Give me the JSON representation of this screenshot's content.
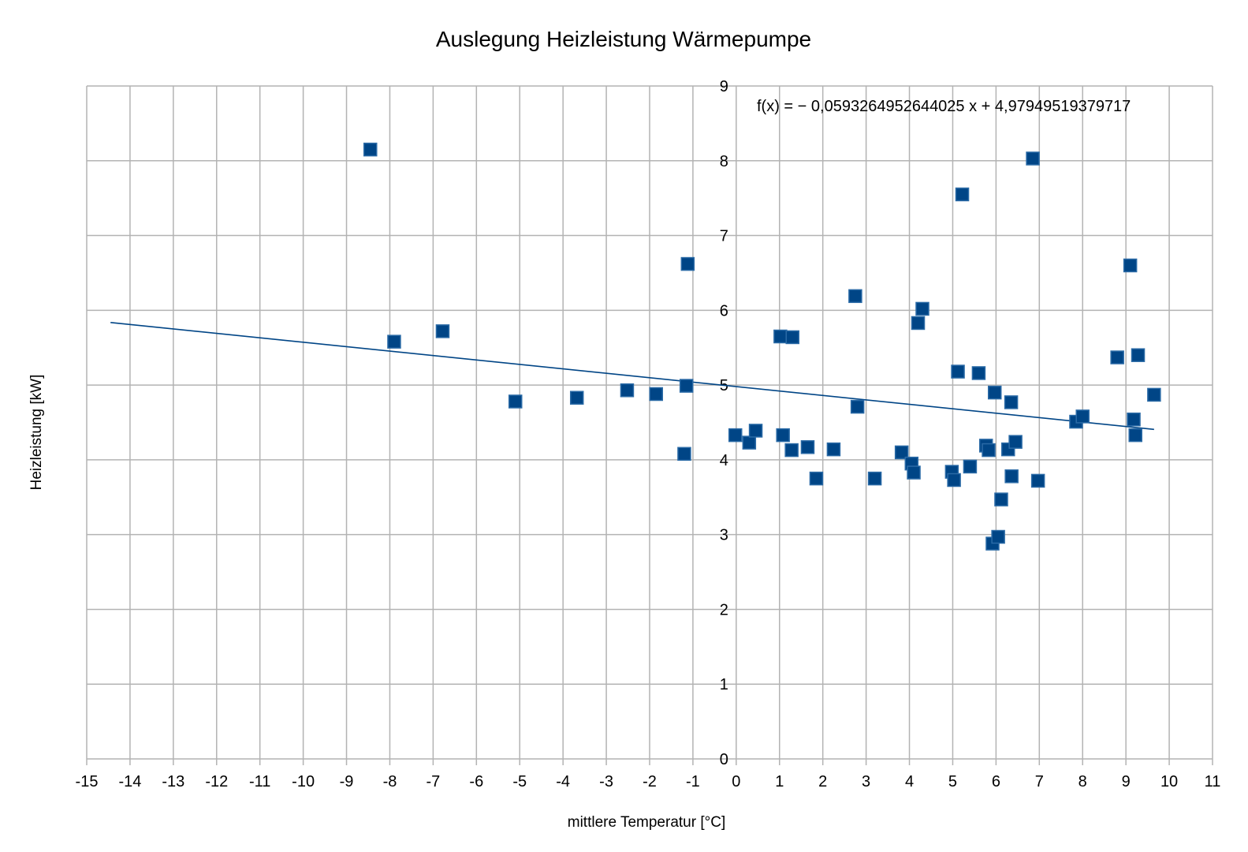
{
  "chart_data": {
    "type": "scatter",
    "title": "Auslegung Heizleistung Wärmepumpe",
    "xlabel": "mittlere Temperatur [°C]",
    "ylabel": "Heizleistung [kW]",
    "xlim": [
      -15,
      11
    ],
    "ylim": [
      0,
      9
    ],
    "x_ticks": [
      -15,
      -14,
      -13,
      -12,
      -11,
      -10,
      -9,
      -8,
      -7,
      -6,
      -5,
      -4,
      -3,
      -2,
      -1,
      0,
      1,
      2,
      3,
      4,
      5,
      6,
      7,
      8,
      9,
      10,
      11
    ],
    "y_ticks": [
      0,
      1,
      2,
      3,
      4,
      5,
      6,
      7,
      8,
      9
    ],
    "grid": true,
    "legend": "none",
    "marker_color": "#004586",
    "trendline": {
      "type": "linear",
      "slope": -0.0593264952644025,
      "intercept": 4.97949519379717,
      "x_range": [
        -14.45,
        9.65
      ],
      "equation": "f(x) = − 0,0593264952644025 x + 4,97949519379717"
    },
    "series": [
      {
        "points": [
          [
            -8.45,
            8.15
          ],
          [
            -7.9,
            5.58
          ],
          [
            -6.78,
            5.72
          ],
          [
            -5.1,
            4.78
          ],
          [
            -3.68,
            4.83
          ],
          [
            -2.52,
            4.93
          ],
          [
            -1.85,
            4.88
          ],
          [
            -1.2,
            4.08
          ],
          [
            -1.15,
            4.99
          ],
          [
            -1.12,
            6.62
          ],
          [
            -0.02,
            4.33
          ],
          [
            0.3,
            4.23
          ],
          [
            0.45,
            4.39
          ],
          [
            1.02,
            5.65
          ],
          [
            1.08,
            4.33
          ],
          [
            1.28,
            4.13
          ],
          [
            1.3,
            5.64
          ],
          [
            1.65,
            4.17
          ],
          [
            1.85,
            3.75
          ],
          [
            2.25,
            4.14
          ],
          [
            2.75,
            6.19
          ],
          [
            2.8,
            4.71
          ],
          [
            3.2,
            3.75
          ],
          [
            3.82,
            4.1
          ],
          [
            4.05,
            3.95
          ],
          [
            4.1,
            3.83
          ],
          [
            4.2,
            5.83
          ],
          [
            4.3,
            6.02
          ],
          [
            4.98,
            3.84
          ],
          [
            5.03,
            3.73
          ],
          [
            5.12,
            5.18
          ],
          [
            5.22,
            7.55
          ],
          [
            5.4,
            3.91
          ],
          [
            5.6,
            5.16
          ],
          [
            5.77,
            4.19
          ],
          [
            5.83,
            4.13
          ],
          [
            5.92,
            2.88
          ],
          [
            5.97,
            4.9
          ],
          [
            6.05,
            2.97
          ],
          [
            6.12,
            3.47
          ],
          [
            6.28,
            4.14
          ],
          [
            6.35,
            4.77
          ],
          [
            6.36,
            3.78
          ],
          [
            6.45,
            4.24
          ],
          [
            6.85,
            8.03
          ],
          [
            6.97,
            3.72
          ],
          [
            7.85,
            4.51
          ],
          [
            8.0,
            4.58
          ],
          [
            8.8,
            5.37
          ],
          [
            9.1,
            6.6
          ],
          [
            9.18,
            4.54
          ],
          [
            9.22,
            4.33
          ],
          [
            9.28,
            5.4
          ],
          [
            9.65,
            4.87
          ]
        ]
      }
    ]
  }
}
